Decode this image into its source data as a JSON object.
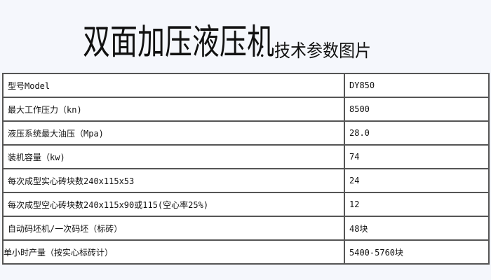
{
  "title": "双面加压液压机",
  "subtitle": "：技术参数图片",
  "specs": [
    {
      "label": "型号Model",
      "value": "DY850"
    },
    {
      "label": "最大工作压力（kn)",
      "value": "8500"
    },
    {
      "label": "液压系统最大油压（Mpa)",
      "value": "28.0"
    },
    {
      "label": "装机容量（kw)",
      "value": "74"
    },
    {
      "label": "每次成型实心砖块数240x115x53",
      "value": "24"
    },
    {
      "label": "每次成型空心砖块数240x115x90或115(空心率25%)",
      "value": "12"
    },
    {
      "label": "自动码坯机/一次码坯（标砖）",
      "value": "48块"
    },
    {
      "label": "单小时产量（按实心标砖计）",
      "value": "5400-5760块"
    }
  ]
}
